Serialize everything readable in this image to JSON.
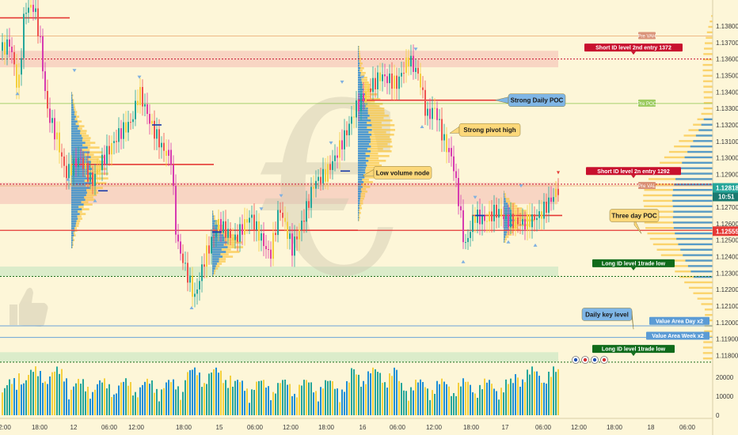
{
  "chart_data": {
    "type": "candlestick",
    "symbol_glyph": "€",
    "thumb_icon": "thumbs-up-icon",
    "yaxis": {
      "range": [
        1.1174,
        1.1392
      ],
      "ticks": [
        "1.13800",
        "1.13700",
        "1.13600",
        "1.13500",
        "1.13400",
        "1.13300",
        "1.13200",
        "1.13100",
        "1.13000",
        "1.12900",
        "1.12800",
        "1.12700",
        "1.12600",
        "1.12500",
        "1.12400",
        "1.12300",
        "1.12200",
        "1.12100",
        "1.12000",
        "1.11900",
        "1.11800"
      ],
      "current_price": "1.12818",
      "countdown": "10:51",
      "marker_price": "1.12555"
    },
    "volume_axis": {
      "range": [
        0,
        25000
      ],
      "ticks": [
        "20000",
        "10000",
        "0"
      ]
    },
    "xaxis": {
      "ticks": [
        {
          "label": "2:00",
          "x": 6
        },
        {
          "label": "18:00",
          "x": 50
        },
        {
          "label": "12",
          "x": 93
        },
        {
          "label": "06:00",
          "x": 138
        },
        {
          "label": "12:00",
          "x": 172
        },
        {
          "label": "18:00",
          "x": 232
        },
        {
          "label": "15",
          "x": 277
        },
        {
          "label": "06:00",
          "x": 322
        },
        {
          "label": "12:00",
          "x": 367
        },
        {
          "label": "18:00",
          "x": 412
        },
        {
          "label": "16",
          "x": 458
        },
        {
          "label": "06:00",
          "x": 502
        },
        {
          "label": "12:00",
          "x": 548
        },
        {
          "label": "18:00",
          "x": 595
        },
        {
          "label": "17",
          "x": 638
        },
        {
          "label": "06:00",
          "x": 686
        },
        {
          "label": "12:00",
          "x": 731
        },
        {
          "label": "18:00",
          "x": 776
        },
        {
          "label": "18",
          "x": 822
        },
        {
          "label": "06:00",
          "x": 868
        }
      ]
    },
    "levels": [
      {
        "name": "Short ID level 2nd entry 1372",
        "price": 1.136,
        "color": "#c8102e",
        "style": "dotted"
      },
      {
        "name": "Short ID level 2n entry 1292",
        "price": 1.1284,
        "color": "#c8102e",
        "style": "dotted"
      },
      {
        "name": "Long ID level 1trade low",
        "price": 1.1228,
        "color": "#1b6e1b",
        "style": "dotted"
      },
      {
        "name": "Long ID level 1trade low",
        "price": 1.1176,
        "color": "#1b6e1b",
        "style": "dotted"
      },
      {
        "name": "Value Area Day x2",
        "price": 1.1198,
        "color": "#6aa3d8",
        "style": "solid"
      },
      {
        "name": "Value Area Week x2",
        "price": 1.1191,
        "color": "#6aa3d8",
        "style": "solid"
      }
    ],
    "level_labels": [
      {
        "text": "Short ID level 2nd entry 1372",
        "color": "#c8102e",
        "price": 1.1367
      },
      {
        "text": "Short ID level 2n entry 1292",
        "color": "#c8102e",
        "price": 1.1292
      },
      {
        "text": "Long ID level 1trade low",
        "color": "#0f6b1a",
        "price": 1.1236
      },
      {
        "text": "Long ID level 1trade low",
        "color": "#0f6b1a",
        "price": 1.1184
      },
      {
        "text": "Value Area Day x2",
        "color": "#5b9bd5",
        "price": 1.1201
      },
      {
        "text": "Value Area Week x2",
        "color": "#5b9bd5",
        "price": 1.1192
      }
    ],
    "small_labels": [
      {
        "text": "Pre VAH",
        "color": "#d4836a",
        "price": 1.1374
      },
      {
        "text": "Pre POC",
        "color": "#8bc34a",
        "price": 1.1333
      },
      {
        "text": "Pre VAL",
        "color": "#d4836a",
        "price": 1.1283
      }
    ],
    "callouts": [
      {
        "text": "Strong Daily POC",
        "price": 1.1335,
        "color": "#7fb6e6"
      },
      {
        "text": "Strong pivot high",
        "price": 1.1317,
        "color": "#fcd87a"
      },
      {
        "text": "Low volume node",
        "price": 1.1291,
        "color": "#fcd87a"
      },
      {
        "text": "Three day POC",
        "price": 1.1265,
        "color": "#fcd87a"
      },
      {
        "text": "Daily key level",
        "price": 1.1205,
        "color": "#7fb6e6"
      }
    ],
    "bullet_count": 4
  }
}
